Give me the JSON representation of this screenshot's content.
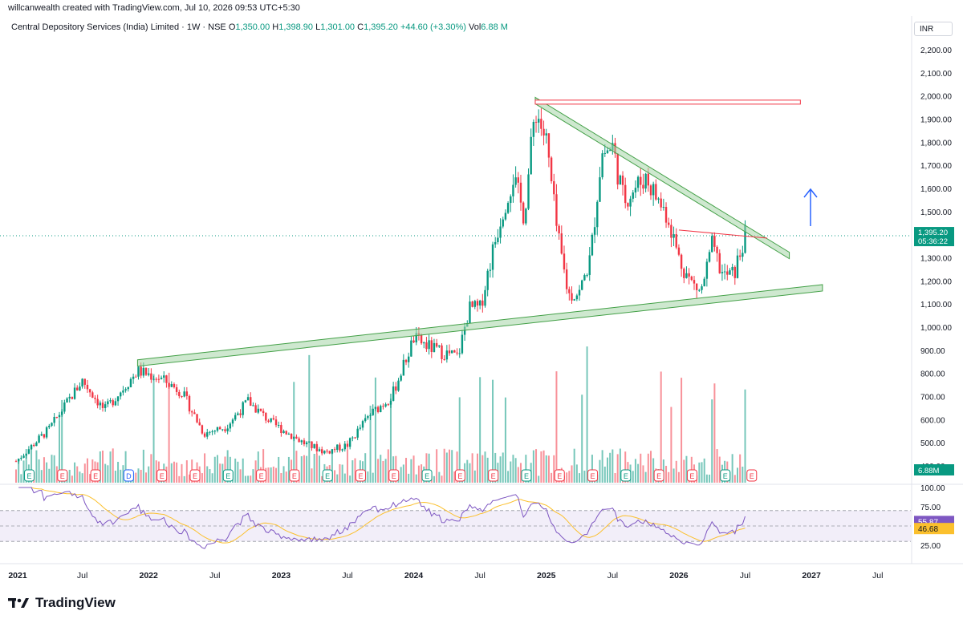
{
  "header": {
    "top_line": "willcanwealth created with TradingView.com, Jul 10, 2026 09:53 UTC+5:30",
    "symbol": "Central Depository Services (India) Limited · 1W · NSE",
    "o_key": "O",
    "o_val": "1,350.00",
    "h_key": "H",
    "h_val": "1,398.90",
    "l_key": "L",
    "l_val": "1,301.00",
    "c_key": "C",
    "c_val": "1,395.20",
    "change": "+44.60 (+3.30%)",
    "vol_key": "Vol",
    "vol_val": "6.88 M"
  },
  "currency": "INR",
  "price_axis": [
    "2,200.00",
    "2,100.00",
    "2,000.00",
    "1,900.00",
    "1,800.00",
    "1,700.00",
    "1,600.00",
    "1,500.00",
    "1,300.00",
    "1,200.00",
    "1,100.00",
    "1,000.00",
    "900.00",
    "800.00",
    "700.00",
    "600.00",
    "500.00",
    "400.00"
  ],
  "price_badge": "1,395.20",
  "countdown_badge": "05:36:22",
  "volume_badge": "6.88M",
  "rsi_axis": [
    "100.00",
    "75.00",
    "25.00"
  ],
  "rsi_badges": [
    "55.87",
    "46.68"
  ],
  "time_axis": [
    "2021",
    "Jul",
    "2022",
    "Jul",
    "2023",
    "Jul",
    "2024",
    "Jul",
    "2025",
    "Jul",
    "2026",
    "Jul",
    "2027",
    "Jul"
  ],
  "event_marker_letter": "E",
  "dividend_marker_letter": "D",
  "footer_brand": "TradingView",
  "colors": {
    "up": "#089981",
    "down": "#f23645",
    "trend_fill": "#a5d6a7",
    "trend_stroke": "#43a047",
    "resistance": "#f23645",
    "rsi_line": "#7e57c2",
    "rsi_ma": "#fbc02d",
    "arrow": "#2962ff"
  },
  "chart_data": {
    "type": "candlestick",
    "title": "Central Depository Services (India) Limited · 1W · NSE",
    "ylim": [
      380,
      2250
    ],
    "x_range": [
      "2021-01",
      "2027-10"
    ],
    "close_path": [
      [
        "2021-01",
        420
      ],
      [
        "2021-04",
        560
      ],
      [
        "2021-07",
        770
      ],
      [
        "2021-09",
        640
      ],
      [
        "2021-12",
        810
      ],
      [
        "2022-02",
        780
      ],
      [
        "2022-04",
        720
      ],
      [
        "2022-06",
        540
      ],
      [
        "2022-08",
        570
      ],
      [
        "2022-10",
        680
      ],
      [
        "2022-12",
        590
      ],
      [
        "2023-03",
        500
      ],
      [
        "2023-05",
        460
      ],
      [
        "2023-07",
        490
      ],
      [
        "2023-09",
        620
      ],
      [
        "2023-11",
        700
      ],
      [
        "2024-01",
        950
      ],
      [
        "2024-03",
        900
      ],
      [
        "2024-05",
        870
      ],
      [
        "2024-06",
        1080
      ],
      [
        "2024-07",
        1080
      ],
      [
        "2024-08",
        1300
      ],
      [
        "2024-09",
        1500
      ],
      [
        "2024-10",
        1650
      ],
      [
        "2024-11",
        1480
      ],
      [
        "2024-12",
        1950
      ],
      [
        "2025-01",
        1800
      ],
      [
        "2025-02",
        1400
      ],
      [
        "2025-03",
        1140
      ],
      [
        "2025-04",
        1150
      ],
      [
        "2025-05",
        1300
      ],
      [
        "2025-06",
        1750
      ],
      [
        "2025-07",
        1780
      ],
      [
        "2025-08",
        1550
      ],
      [
        "2025-09",
        1600
      ],
      [
        "2025-10",
        1650
      ],
      [
        "2025-11",
        1560
      ],
      [
        "2025-12",
        1480
      ],
      [
        "2026-01",
        1300
      ],
      [
        "2026-02",
        1200
      ],
      [
        "2026-03",
        1150
      ],
      [
        "2026-04",
        1350
      ],
      [
        "2026-05",
        1220
      ],
      [
        "2026-06",
        1230
      ],
      [
        "2026-07",
        1395.2
      ]
    ],
    "trendlines": [
      {
        "name": "descending",
        "from": [
          "2024-12",
          1980
        ],
        "to": [
          "2026-11",
          1310
        ]
      },
      {
        "name": "ascending support",
        "from": [
          "2021-12",
          845
        ],
        "to": [
          "2027-02",
          1170
        ]
      },
      {
        "name": "resistance top",
        "from": [
          "2024-12",
          1975
        ],
        "to": [
          "2026-12",
          1975
        ]
      },
      {
        "name": "neckline",
        "from": [
          "2026-01",
          1420
        ],
        "to": [
          "2026-09",
          1385
        ]
      }
    ],
    "rsi": {
      "ylim": [
        0,
        100
      ],
      "bands": [
        30,
        70
      ],
      "last": 55.87,
      "ma_last": 46.68
    }
  }
}
